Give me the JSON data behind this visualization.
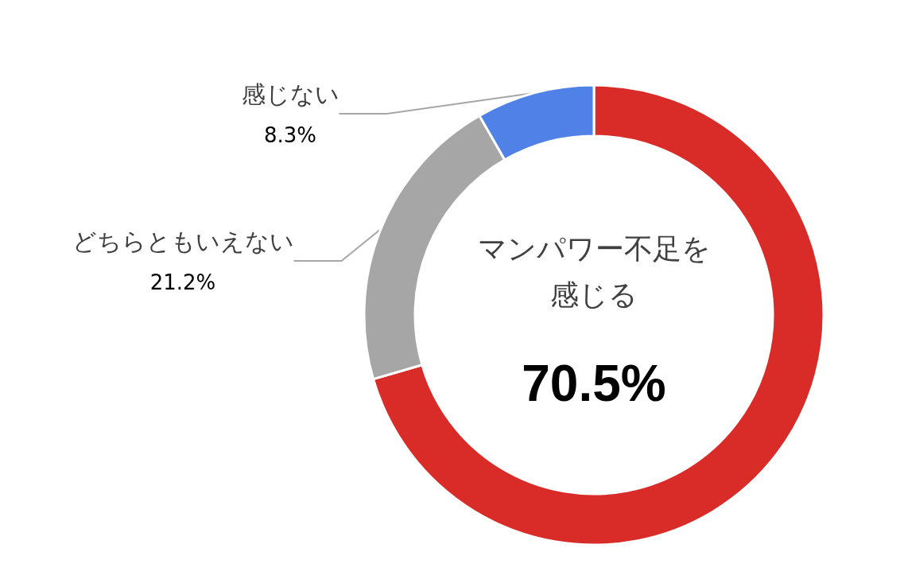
{
  "chart_data": {
    "type": "donut",
    "categories": [
      "マンパワー不足を感じる",
      "どちらともいえない",
      "感じない"
    ],
    "values": [
      70.5,
      21.2,
      8.3
    ],
    "colors": [
      "#d92b27",
      "#a6a6a6",
      "#4f81e6"
    ],
    "value_labels": [
      "70.5%",
      "21.2%",
      "8.3%"
    ],
    "legend": false
  }
}
